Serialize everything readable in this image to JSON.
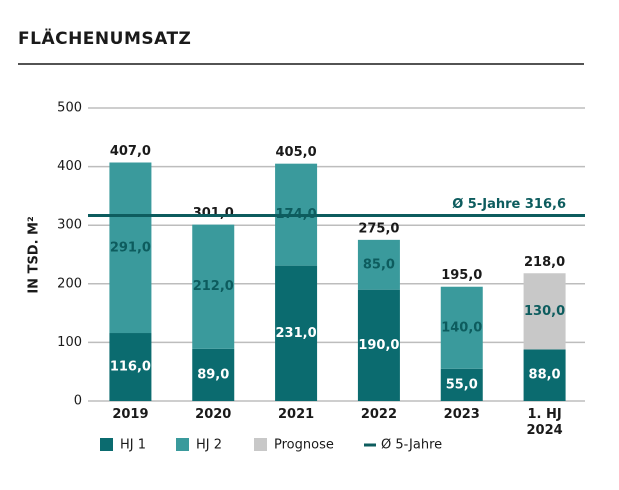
{
  "chart_data": {
    "type": "stacked_bar",
    "title": "FLÄCHENUMSATZ",
    "y_label": "IN TSD. M²",
    "categories": [
      "2019",
      "2020",
      "2021",
      "2022",
      "2023",
      "1. HJ\n2024"
    ],
    "series": [
      {
        "name": "HJ 1",
        "color": "#0b6b6f",
        "label_color": "#ffffff",
        "values": [
          116,
          89,
          231,
          190,
          55,
          88
        ],
        "value_labels": [
          "116,0",
          "89,0",
          "231,0",
          "190,0",
          "55,0",
          "88,0"
        ]
      },
      {
        "name": "HJ 2",
        "color": "#3a9a9c",
        "label_color": "#0d5c5e",
        "values": [
          291,
          212,
          174,
          85,
          140,
          null
        ],
        "value_labels": [
          "291,0",
          "212,0",
          "174,0",
          "85,0",
          "140,0",
          null
        ]
      },
      {
        "name": "Prognose",
        "color": "#c8c8c8",
        "label_color": "#0d5c5e",
        "values": [
          null,
          null,
          null,
          null,
          null,
          130
        ],
        "value_labels": [
          null,
          null,
          null,
          null,
          null,
          "130,0"
        ]
      }
    ],
    "totals": [
      407,
      301,
      405,
      275,
      195,
      218
    ],
    "total_labels": [
      "407,0",
      "301,0",
      "405,0",
      "275,0",
      "195,0",
      "218,0"
    ],
    "reference_line": {
      "name": "Ø 5-Jahre",
      "value": 316.6,
      "label": "Ø 5-Jahre 316,6",
      "color": "#0d5c5e"
    },
    "ylim": [
      0,
      500
    ],
    "yticks": [
      0,
      100,
      200,
      300,
      400,
      500
    ],
    "grid": true
  }
}
